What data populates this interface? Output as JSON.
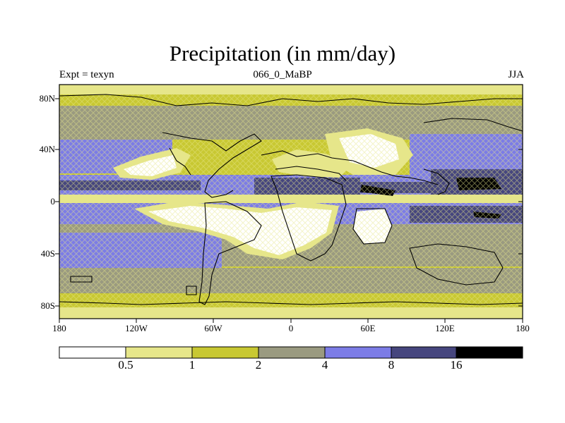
{
  "title": "Precipitation (in mm/day)",
  "subtitle_left": "Expt = texyn",
  "subtitle_center": "066_0_MaBP",
  "subtitle_right": "JJA",
  "lat_ticks": [
    "80N",
    "40N",
    "0",
    "40S",
    "80S"
  ],
  "lat_values": [
    80,
    40,
    0,
    -40,
    -80
  ],
  "lon_ticks": [
    "180",
    "120W",
    "60W",
    "0",
    "60E",
    "120E",
    "180"
  ],
  "lon_values": [
    -180,
    -120,
    -60,
    0,
    60,
    120,
    180
  ],
  "colorbar": {
    "labels": [
      "0.5",
      "1",
      "2",
      "4",
      "8",
      "16"
    ],
    "colors": [
      "#ffffff",
      "#e6e68a",
      "#c8c832",
      "#9a9a80",
      "#7c7ce6",
      "#46467e",
      "#000000"
    ]
  },
  "palette": {
    "white": "#ffffff",
    "light_yellow": "#e6e68a",
    "olive": "#c8c832",
    "gray": "#9a9a80",
    "light_blue": "#7c7ce6",
    "dark_blue": "#46467e",
    "black": "#000000"
  }
}
